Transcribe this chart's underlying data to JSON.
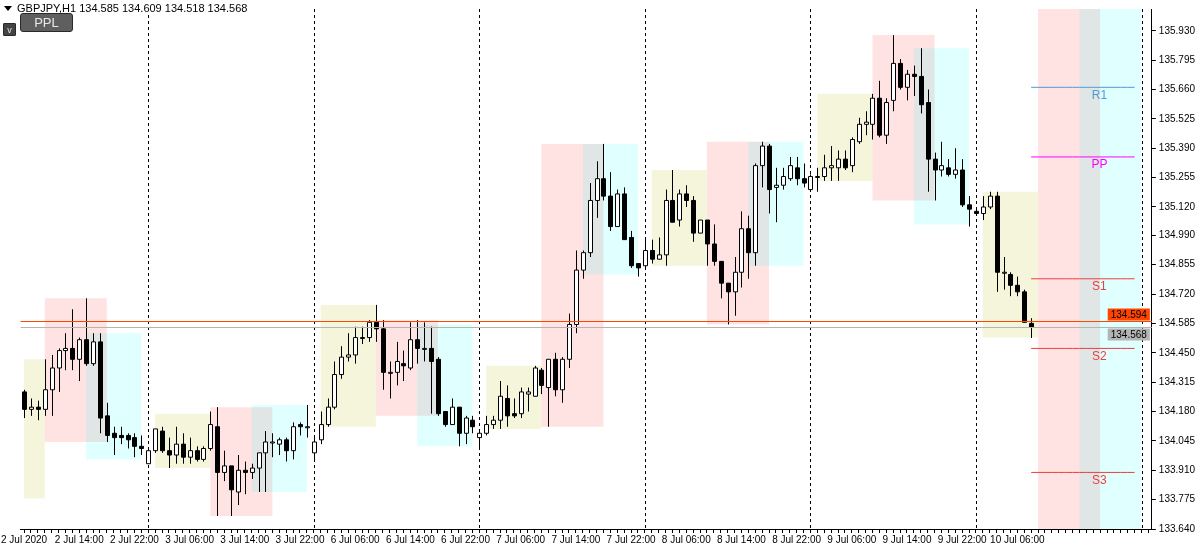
{
  "chart_data": {
    "type": "candlestick",
    "title": "GBPJPY,H1  134.585 134.609 134.518 134.568",
    "annotations": [
      "PPL",
      "v"
    ],
    "categories": [
      "2 Jul 2020",
      null,
      null,
      null,
      null,
      null,
      null,
      null,
      "2 Jul 14:00",
      null,
      null,
      null,
      null,
      null,
      null,
      null,
      "2 Jul 22:00",
      null,
      null,
      null,
      null,
      null,
      null,
      null,
      "3 Jul 06:00",
      null,
      null,
      null,
      null,
      null,
      null,
      null,
      "3 Jul 14:00",
      null,
      null,
      null,
      null,
      null,
      null,
      null,
      "3 Jul 22:00",
      null,
      null,
      null,
      null,
      null,
      null,
      null,
      "6 Jul 06:00",
      null,
      null,
      null,
      null,
      null,
      null,
      null,
      "6 Jul 14:00",
      null,
      null,
      null,
      null,
      null,
      null,
      null,
      "6 Jul 22:00",
      null,
      null,
      null,
      null,
      null,
      null,
      null,
      "7 Jul 06:00",
      null,
      null,
      null,
      null,
      null,
      null,
      null,
      "7 Jul 14:00",
      null,
      null,
      null,
      null,
      null,
      null,
      null,
      "7 Jul 22:00",
      null,
      null,
      null,
      null,
      null,
      null,
      null,
      "8 Jul 06:00",
      null,
      null,
      null,
      null,
      null,
      null,
      null,
      "8 Jul 14:00",
      null,
      null,
      null,
      null,
      null,
      null,
      null,
      "8 Jul 22:00",
      null,
      null,
      null,
      null,
      null,
      null,
      null,
      "9 Jul 06:00",
      null,
      null,
      null,
      null,
      null,
      null,
      null,
      "9 Jul 14:00",
      null,
      null,
      null,
      null,
      null,
      null,
      null,
      "9 Jul 22:00",
      null,
      null,
      null,
      null,
      null,
      null,
      null,
      "10 Jul 06:00",
      null,
      null,
      null,
      null,
      null,
      null,
      null,
      null,
      null,
      null,
      null,
      null,
      null,
      null,
      null,
      null,
      null,
      null,
      null
    ],
    "ohlc": [
      [
        134.27,
        134.28,
        134.15,
        134.19
      ],
      [
        134.19,
        134.24,
        134.16,
        134.2
      ],
      [
        134.2,
        134.23,
        134.14,
        134.19
      ],
      [
        134.19,
        134.42,
        134.16,
        134.28
      ],
      [
        134.28,
        134.44,
        134.16,
        134.38
      ],
      [
        134.38,
        134.47,
        134.27,
        134.46
      ],
      [
        134.46,
        134.54,
        134.37,
        134.47
      ],
      [
        134.47,
        134.65,
        134.37,
        134.42
      ],
      [
        134.42,
        134.52,
        134.32,
        134.51
      ],
      [
        134.51,
        134.7,
        134.39,
        134.4
      ],
      [
        134.4,
        134.54,
        134.39,
        134.5
      ],
      [
        134.5,
        134.54,
        134.08,
        134.15
      ],
      [
        134.16,
        134.22,
        134.04,
        134.07
      ],
      [
        134.08,
        134.11,
        133.98,
        134.06
      ],
      [
        134.07,
        134.11,
        134.03,
        134.06
      ],
      [
        134.07,
        134.08,
        134.01,
        134.05
      ],
      [
        134.06,
        134.08,
        133.97,
        134.02
      ],
      [
        134.02,
        134.07,
        133.98,
        134.01
      ],
      [
        133.94,
        134.0,
        133.94,
        134.0
      ],
      [
        134.0,
        134.1,
        133.99,
        134.1
      ],
      [
        134.09,
        134.11,
        133.99,
        134.0
      ],
      [
        134.0,
        134.06,
        133.92,
        133.98
      ],
      [
        133.98,
        134.11,
        133.94,
        134.03
      ],
      [
        134.03,
        134.08,
        133.94,
        133.97
      ],
      [
        133.97,
        134.06,
        133.94,
        134.0
      ],
      [
        134.0,
        134.02,
        133.95,
        133.96
      ],
      [
        133.96,
        134.02,
        133.95,
        134.01
      ],
      [
        134.01,
        134.18,
        134.0,
        134.12
      ],
      [
        134.11,
        134.2,
        133.7,
        133.9
      ],
      [
        133.9,
        134.0,
        133.86,
        133.93
      ],
      [
        133.93,
        133.93,
        133.7,
        133.82
      ],
      [
        133.81,
        133.98,
        133.75,
        133.91
      ],
      [
        133.91,
        133.95,
        133.8,
        133.9
      ],
      [
        133.9,
        133.94,
        133.87,
        133.92
      ],
      [
        133.92,
        133.99,
        133.81,
        133.99
      ],
      [
        133.99,
        134.09,
        133.81,
        134.04
      ],
      [
        134.04,
        134.08,
        133.97,
        134.04
      ],
      [
        134.03,
        134.06,
        133.98,
        134.05
      ],
      [
        134.05,
        134.06,
        133.95,
        134.0
      ],
      [
        134.0,
        134.13,
        133.96,
        134.11
      ],
      [
        134.12,
        134.13,
        134.07,
        134.11
      ],
      [
        134.11,
        134.21,
        134.06,
        134.11
      ],
      [
        133.99,
        134.06,
        133.95,
        134.04
      ],
      [
        134.05,
        134.18,
        134.03,
        134.12
      ],
      [
        134.12,
        134.24,
        134.11,
        134.2
      ],
      [
        134.2,
        134.41,
        134.19,
        134.35
      ],
      [
        134.35,
        134.48,
        134.33,
        134.43
      ],
      [
        134.43,
        134.54,
        134.41,
        134.44
      ],
      [
        134.44,
        134.57,
        134.4,
        134.52
      ],
      [
        134.52,
        134.57,
        134.49,
        134.52
      ],
      [
        134.52,
        134.6,
        134.5,
        134.59
      ],
      [
        134.59,
        134.67,
        134.5,
        134.56
      ],
      [
        134.56,
        134.6,
        134.28,
        134.36
      ],
      [
        134.36,
        134.41,
        134.24,
        134.36
      ],
      [
        134.36,
        134.5,
        134.3,
        134.41
      ],
      [
        134.4,
        134.46,
        134.32,
        134.39
      ],
      [
        134.38,
        134.59,
        134.37,
        134.51
      ],
      [
        134.51,
        134.6,
        134.4,
        134.47
      ],
      [
        134.47,
        134.59,
        134.41,
        134.47
      ],
      [
        134.47,
        134.57,
        134.17,
        134.41
      ],
      [
        134.42,
        134.43,
        134.16,
        134.17
      ],
      [
        134.18,
        134.18,
        134.11,
        134.12
      ],
      [
        134.12,
        134.24,
        134.12,
        134.2
      ],
      [
        134.2,
        134.2,
        134.02,
        134.08
      ],
      [
        134.08,
        134.16,
        134.03,
        134.15
      ],
      [
        134.14,
        134.16,
        134.08,
        134.11
      ],
      [
        134.06,
        134.09,
        134.01,
        134.08
      ],
      [
        134.08,
        134.16,
        134.07,
        134.12
      ],
      [
        134.12,
        134.16,
        134.1,
        134.14
      ],
      [
        134.14,
        134.32,
        134.1,
        134.25
      ],
      [
        134.24,
        134.3,
        134.11,
        134.16
      ],
      [
        134.17,
        134.24,
        134.15,
        134.16
      ],
      [
        134.17,
        134.29,
        134.15,
        134.27
      ],
      [
        134.26,
        134.29,
        134.18,
        134.27
      ],
      [
        134.25,
        134.39,
        134.25,
        134.38
      ],
      [
        134.37,
        134.38,
        134.26,
        134.3
      ],
      [
        134.29,
        134.42,
        134.11,
        134.42
      ],
      [
        134.42,
        134.45,
        134.25,
        134.28
      ],
      [
        134.28,
        134.43,
        134.22,
        134.42
      ],
      [
        134.42,
        134.63,
        134.38,
        134.58
      ],
      [
        134.58,
        134.92,
        134.54,
        134.83
      ],
      [
        134.83,
        134.92,
        134.79,
        134.91
      ],
      [
        134.91,
        135.23,
        134.89,
        135.15
      ],
      [
        135.15,
        135.33,
        135.07,
        135.25
      ],
      [
        135.25,
        135.41,
        135.15,
        135.17
      ],
      [
        135.17,
        135.28,
        135.01,
        135.03
      ],
      [
        135.03,
        135.2,
        135.03,
        135.18
      ],
      [
        135.18,
        135.21,
        134.97,
        134.97
      ],
      [
        134.98,
        135.01,
        134.84,
        134.85
      ],
      [
        134.86,
        134.86,
        134.8,
        134.84
      ],
      [
        134.85,
        134.98,
        134.84,
        134.92
      ],
      [
        134.92,
        134.97,
        134.86,
        134.88
      ],
      [
        134.88,
        134.98,
        134.88,
        134.9
      ],
      [
        134.9,
        135.2,
        134.85,
        135.15
      ],
      [
        135.15,
        135.29,
        135.05,
        135.05
      ],
      [
        135.06,
        135.2,
        135.03,
        135.18
      ],
      [
        135.18,
        135.22,
        135.12,
        135.15
      ],
      [
        135.15,
        135.17,
        134.96,
        135.0
      ],
      [
        135.0,
        135.06,
        135.0,
        135.06
      ],
      [
        135.06,
        135.06,
        134.85,
        134.95
      ],
      [
        134.95,
        135.04,
        134.85,
        134.87
      ],
      [
        134.87,
        134.87,
        134.7,
        134.77
      ],
      [
        134.77,
        134.77,
        134.58,
        134.73
      ],
      [
        134.73,
        134.89,
        134.62,
        134.82
      ],
      [
        134.82,
        135.1,
        134.75,
        135.02
      ],
      [
        135.02,
        135.08,
        134.79,
        134.91
      ],
      [
        134.91,
        135.32,
        134.85,
        135.31
      ],
      [
        135.31,
        135.42,
        135.21,
        135.4
      ],
      [
        135.4,
        135.41,
        135.09,
        135.2
      ],
      [
        135.21,
        135.3,
        135.05,
        135.22
      ],
      [
        135.22,
        135.3,
        135.2,
        135.26
      ],
      [
        135.25,
        135.35,
        135.24,
        135.31
      ],
      [
        135.3,
        135.35,
        135.22,
        135.25
      ],
      [
        135.25,
        135.32,
        135.21,
        135.23
      ],
      [
        135.2,
        135.27,
        135.2,
        135.26
      ],
      [
        135.26,
        135.3,
        135.19,
        135.26
      ],
      [
        135.26,
        135.36,
        135.24,
        135.3
      ],
      [
        135.3,
        135.4,
        135.24,
        135.31
      ],
      [
        135.3,
        135.38,
        135.24,
        135.34
      ],
      [
        135.34,
        135.38,
        135.29,
        135.3
      ],
      [
        135.31,
        135.44,
        135.28,
        135.43
      ],
      [
        135.42,
        135.53,
        135.41,
        135.5
      ],
      [
        135.5,
        135.56,
        135.45,
        135.51
      ],
      [
        135.5,
        135.64,
        135.43,
        135.62
      ],
      [
        135.62,
        135.7,
        135.44,
        135.45
      ],
      [
        135.45,
        135.62,
        135.41,
        135.6
      ],
      [
        135.61,
        135.91,
        135.56,
        135.78
      ],
      [
        135.78,
        135.8,
        135.66,
        135.67
      ],
      [
        135.67,
        135.75,
        135.61,
        135.73
      ],
      [
        135.73,
        135.77,
        135.63,
        135.72
      ],
      [
        135.72,
        135.85,
        135.55,
        135.59
      ],
      [
        135.6,
        135.66,
        135.19,
        135.34
      ],
      [
        135.34,
        135.37,
        135.15,
        135.29
      ],
      [
        135.29,
        135.42,
        135.26,
        135.31
      ],
      [
        135.3,
        135.34,
        135.26,
        135.27
      ],
      [
        135.27,
        135.39,
        135.25,
        135.29
      ],
      [
        135.29,
        135.34,
        135.12,
        135.13
      ],
      [
        135.13,
        135.17,
        135.03,
        135.11
      ],
      [
        135.1,
        135.11,
        135.09,
        135.09
      ],
      [
        135.09,
        135.17,
        135.06,
        135.12
      ],
      [
        135.12,
        135.19,
        135.11,
        135.17
      ],
      [
        135.17,
        135.19,
        134.73,
        134.82
      ],
      [
        134.82,
        134.89,
        134.74,
        134.82
      ],
      [
        134.81,
        134.82,
        134.71,
        134.76
      ],
      [
        134.76,
        134.8,
        134.71,
        134.73
      ],
      [
        134.73,
        134.74,
        134.59,
        134.59
      ],
      [
        134.585,
        134.609,
        134.518,
        134.568
      ],
      null,
      null,
      null,
      null,
      null,
      null,
      null,
      null,
      null,
      null,
      null,
      null,
      null,
      null,
      null,
      null,
      null
    ],
    "bands": [
      {
        "axis": "y",
        "from": 133.92,
        "to": 134.17,
        "color": "#f5f5dc"
      },
      {
        "axis": "y",
        "from": 134.11,
        "to": 134.67,
        "color": "#f5f5dc"
      },
      {
        "axis": "y",
        "from": 134.1,
        "to": 134.39,
        "color": "#f5f5dc"
      },
      {
        "axis": "y",
        "from": 134.85,
        "to": 135.29,
        "color": "#f5f5dc"
      },
      {
        "axis": "y",
        "from": 135.24,
        "to": 135.64,
        "color": "#f5f5dc"
      },
      {
        "axis": "y",
        "from": 134.52,
        "to": 135.19,
        "color": "#f5f5dc"
      },
      {
        "axis": "y",
        "from": 134.04,
        "to": 134.7,
        "color": "#ffe3e3"
      },
      {
        "axis": "y",
        "from": 133.7,
        "to": 134.2,
        "color": "#ffe3e3"
      },
      {
        "axis": "y",
        "from": 134.16,
        "to": 134.6,
        "color": "#ffe3e3"
      },
      {
        "axis": "y",
        "from": 134.11,
        "to": 135.41,
        "color": "#ffe3e3"
      },
      {
        "axis": "y",
        "from": 134.58,
        "to": 135.42,
        "color": "#ffe3e3"
      },
      {
        "axis": "y",
        "from": 135.15,
        "to": 135.91,
        "color": "#ffe3e3"
      },
      {
        "axis": "y",
        "from": 133.96,
        "to": 134.54,
        "color": "#e0ffff"
      },
      {
        "axis": "y",
        "from": 133.81,
        "to": 134.21,
        "color": "#e0ffff"
      },
      {
        "axis": "y",
        "from": 134.02,
        "to": 134.58,
        "color": "#e0ffff"
      },
      {
        "axis": "y",
        "from": 134.81,
        "to": 135.41,
        "color": "#e0ffff"
      },
      {
        "axis": "y",
        "from": 134.85,
        "to": 135.42,
        "color": "#e0ffff"
      },
      {
        "axis": "y",
        "from": 135.04,
        "to": 135.85,
        "color": "#e0ffff"
      }
    ],
    "series": [
      {
        "type": "line",
        "color": "#f5f5dc",
        "values": [
          null,
          null,
          null,
          null,
          null,
          null,
          null,
          null,
          null,
          null,
          null,
          null,
          null,
          null,
          null,
          null,
          null,
          null,
          null,
          null,
          null,
          null,
          null,
          null,
          null,
          null,
          null,
          null,
          null,
          null,
          null,
          null,
          null,
          null,
          null,
          null,
          null,
          null,
          null,
          null,
          null,
          null,
          null,
          null,
          null,
          null,
          null,
          null,
          null,
          null,
          null,
          null,
          null,
          null,
          null,
          null,
          null,
          null,
          null,
          null,
          null,
          null,
          null,
          null,
          null,
          null,
          null,
          null,
          null,
          null,
          null,
          null,
          null,
          null,
          null,
          null,
          null,
          null,
          null,
          null,
          null,
          null,
          null,
          null,
          null,
          null,
          null,
          null,
          null,
          null,
          null,
          null,
          null,
          null,
          null,
          null,
          null,
          null,
          null,
          null,
          null,
          null,
          null,
          null,
          null,
          null,
          null,
          null,
          null,
          null,
          null,
          null,
          null,
          null,
          null,
          null,
          null,
          null,
          null,
          null,
          null,
          null,
          null,
          null,
          null,
          null,
          null,
          null,
          null,
          null,
          null,
          null,
          null,
          null,
          null,
          null,
          null,
          null,
          null,
          null,
          null,
          null,
          null,
          null,
          null,
          null,
          null,
          null,
          null,
          null,
          null,
          null,
          null,
          null,
          null,
          null,
          null,
          null,
          null,
          null,
          null,
          null,
          null,
          null
        ],
        "lower": [
          133.78,
          133.78,
          133.78,
          133.78,
          null,
          null,
          null,
          null,
          null,
          null,
          null,
          null,
          null,
          null,
          null,
          null,
          null,
          null,
          null,
          null,
          null,
          null,
          null,
          null,
          null,
          null,
          null,
          null,
          null,
          null,
          null,
          null,
          null,
          null,
          null,
          null,
          null,
          null,
          null,
          null,
          null,
          null,
          null,
          null,
          null,
          null,
          null,
          null,
          null,
          null,
          null,
          null,
          null,
          null,
          null,
          null,
          null,
          null,
          null,
          null,
          null,
          null,
          null,
          null,
          null,
          null,
          null,
          null,
          null,
          null,
          null,
          null,
          null,
          null,
          null,
          null,
          null,
          null,
          null,
          null,
          null,
          null,
          null,
          null,
          null,
          null,
          null,
          null,
          null,
          null,
          null,
          null,
          null,
          null,
          null,
          null,
          null,
          null,
          null,
          null,
          null,
          null,
          null,
          null,
          null,
          null,
          null,
          null,
          null,
          null,
          null,
          null,
          null,
          null,
          null,
          null,
          null,
          null,
          null,
          null,
          null,
          null,
          null,
          null,
          null,
          null,
          null,
          null,
          null,
          null,
          null,
          null,
          null,
          null,
          null,
          null,
          null,
          null,
          null,
          null,
          null,
          null,
          null,
          null,
          null,
          null,
          null,
          null,
          null,
          null,
          null,
          null,
          null,
          null,
          null,
          null,
          null,
          null,
          null,
          null,
          null,
          null,
          null,
          null
        ],
        "upper": [
          134.42,
          134.42,
          134.42,
          134.42,
          null,
          null,
          null,
          null,
          null,
          null,
          null,
          null,
          null,
          null,
          null,
          null,
          null,
          null,
          null,
          null,
          null,
          null,
          null,
          null,
          null,
          null,
          null,
          null,
          null,
          null,
          null,
          null,
          null,
          null,
          null,
          null,
          null,
          null,
          null,
          null,
          null,
          null,
          null,
          null,
          null,
          null,
          null,
          null,
          null,
          null,
          null,
          null,
          null,
          null,
          null,
          null,
          null,
          null,
          null,
          null,
          null,
          null,
          null,
          null,
          null,
          null,
          null,
          null,
          null,
          null,
          null,
          null,
          null,
          null,
          null,
          null,
          null,
          null,
          null,
          null,
          null,
          null,
          null,
          null,
          null,
          null,
          null,
          null,
          null,
          null,
          null,
          null,
          null,
          null,
          null,
          null,
          null,
          null,
          null,
          null,
          null,
          null,
          null,
          null,
          null,
          null,
          null,
          null,
          null,
          null,
          null,
          null,
          null,
          null,
          null,
          null,
          null,
          null,
          null,
          null,
          null,
          null,
          null,
          null,
          null,
          null,
          null,
          null,
          null,
          null,
          null,
          null,
          null,
          null,
          null,
          null,
          null,
          null,
          null,
          null,
          null,
          null,
          null,
          null,
          null,
          null,
          null,
          null,
          null,
          null,
          null,
          null,
          null,
          null,
          null,
          null,
          null,
          null,
          null,
          null,
          null,
          null,
          null,
          null
        ]
      },
      {
        "type": "line",
        "name": "R1",
        "color": "#4f9ad8",
        "values": [
          null,
          null,
          null,
          null,
          null,
          null,
          null,
          null,
          null,
          null,
          null,
          null,
          null,
          null,
          null,
          null,
          null,
          null,
          null,
          null,
          null,
          null,
          null,
          null,
          null,
          null,
          null,
          null,
          null,
          null,
          null,
          null,
          null,
          null,
          null,
          null,
          null,
          null,
          null,
          null,
          null,
          null,
          null,
          null,
          null,
          null,
          null,
          null,
          null,
          null,
          null,
          null,
          null,
          null,
          null,
          null,
          null,
          null,
          null,
          null,
          null,
          null,
          null,
          null,
          null,
          null,
          null,
          null,
          null,
          null,
          null,
          null,
          null,
          null,
          null,
          null,
          null,
          null,
          null,
          null,
          null,
          null,
          null,
          null,
          null,
          null,
          null,
          null,
          null,
          null,
          null,
          null,
          null,
          null,
          null,
          null,
          null,
          null,
          null,
          null,
          null,
          null,
          null,
          null,
          null,
          null,
          null,
          null,
          null,
          null,
          null,
          null,
          null,
          null,
          null,
          null,
          null,
          null,
          null,
          null,
          null,
          null,
          null,
          null,
          null,
          null,
          null,
          null,
          null,
          null,
          null,
          null,
          null,
          null,
          null,
          null,
          null,
          null,
          null,
          null,
          null,
          null,
          null,
          null,
          null,
          null,
          135.67,
          135.67,
          135.67,
          135.67,
          135.67,
          135.67,
          135.67,
          135.67,
          135.67,
          135.67,
          135.67,
          135.67,
          135.67,
          135.67,
          135.67,
          135.67,
          null,
          null
        ]
      },
      {
        "type": "line",
        "name": "PP",
        "color": "#ff00ff",
        "values": [
          null,
          null,
          null,
          null,
          null,
          null,
          null,
          null,
          null,
          null,
          null,
          null,
          null,
          null,
          null,
          null,
          null,
          null,
          null,
          null,
          null,
          null,
          null,
          null,
          null,
          null,
          null,
          null,
          null,
          null,
          null,
          null,
          null,
          null,
          null,
          null,
          null,
          null,
          null,
          null,
          null,
          null,
          null,
          null,
          null,
          null,
          null,
          null,
          null,
          null,
          null,
          null,
          null,
          null,
          null,
          null,
          null,
          null,
          null,
          null,
          null,
          null,
          null,
          null,
          null,
          null,
          null,
          null,
          null,
          null,
          null,
          null,
          null,
          null,
          null,
          null,
          null,
          null,
          null,
          null,
          null,
          null,
          null,
          null,
          null,
          null,
          null,
          null,
          null,
          null,
          null,
          null,
          null,
          null,
          null,
          null,
          null,
          null,
          null,
          null,
          null,
          null,
          null,
          null,
          null,
          null,
          null,
          null,
          null,
          null,
          null,
          null,
          null,
          null,
          null,
          null,
          null,
          null,
          null,
          null,
          null,
          null,
          null,
          null,
          null,
          null,
          null,
          null,
          null,
          null,
          null,
          null,
          null,
          null,
          null,
          null,
          null,
          null,
          null,
          null,
          null,
          null,
          null,
          null,
          null,
          null,
          135.35,
          135.35,
          135.35,
          135.35,
          135.35,
          135.35,
          135.35,
          135.35,
          135.35,
          135.35,
          135.35,
          135.35,
          135.35,
          135.35,
          135.35,
          135.35,
          null,
          null
        ]
      },
      {
        "type": "line",
        "name": "S1",
        "color": "#f03c3c",
        "values": [
          null,
          null,
          null,
          null,
          null,
          null,
          null,
          null,
          null,
          null,
          null,
          null,
          null,
          null,
          null,
          null,
          null,
          null,
          null,
          null,
          null,
          null,
          null,
          null,
          null,
          null,
          null,
          null,
          null,
          null,
          null,
          null,
          null,
          null,
          null,
          null,
          null,
          null,
          null,
          null,
          null,
          null,
          null,
          null,
          null,
          null,
          null,
          null,
          null,
          null,
          null,
          null,
          null,
          null,
          null,
          null,
          null,
          null,
          null,
          null,
          null,
          null,
          null,
          null,
          null,
          null,
          null,
          null,
          null,
          null,
          null,
          null,
          null,
          null,
          null,
          null,
          null,
          null,
          null,
          null,
          null,
          null,
          null,
          null,
          null,
          null,
          null,
          null,
          null,
          null,
          null,
          null,
          null,
          null,
          null,
          null,
          null,
          null,
          null,
          null,
          null,
          null,
          null,
          null,
          null,
          null,
          null,
          null,
          null,
          null,
          null,
          null,
          null,
          null,
          null,
          null,
          null,
          null,
          null,
          null,
          null,
          null,
          null,
          null,
          null,
          null,
          null,
          null,
          null,
          null,
          null,
          null,
          null,
          null,
          null,
          null,
          null,
          null,
          null,
          null,
          null,
          null,
          null,
          null,
          null,
          null,
          134.79,
          134.79,
          134.79,
          134.79,
          134.79,
          134.79,
          134.79,
          134.79,
          134.79,
          134.79,
          134.79,
          134.79,
          134.79,
          134.79,
          134.79,
          134.79,
          null,
          null
        ]
      },
      {
        "type": "line",
        "name": "S2",
        "color": "#f03c3c",
        "values": [
          null,
          null,
          null,
          null,
          null,
          null,
          null,
          null,
          null,
          null,
          null,
          null,
          null,
          null,
          null,
          null,
          null,
          null,
          null,
          null,
          null,
          null,
          null,
          null,
          null,
          null,
          null,
          null,
          null,
          null,
          null,
          null,
          null,
          null,
          null,
          null,
          null,
          null,
          null,
          null,
          null,
          null,
          null,
          null,
          null,
          null,
          null,
          null,
          null,
          null,
          null,
          null,
          null,
          null,
          null,
          null,
          null,
          null,
          null,
          null,
          null,
          null,
          null,
          null,
          null,
          null,
          null,
          null,
          null,
          null,
          null,
          null,
          null,
          null,
          null,
          null,
          null,
          null,
          null,
          null,
          null,
          null,
          null,
          null,
          null,
          null,
          null,
          null,
          null,
          null,
          null,
          null,
          null,
          null,
          null,
          null,
          null,
          null,
          null,
          null,
          null,
          null,
          null,
          null,
          null,
          null,
          null,
          null,
          null,
          null,
          null,
          null,
          null,
          null,
          null,
          null,
          null,
          null,
          null,
          null,
          null,
          null,
          null,
          null,
          null,
          null,
          null,
          null,
          null,
          null,
          null,
          null,
          null,
          null,
          null,
          null,
          null,
          null,
          null,
          null,
          null,
          null,
          null,
          null,
          null,
          null,
          134.47,
          134.47,
          134.47,
          134.47,
          134.47,
          134.47,
          134.47,
          134.47,
          134.47,
          134.47,
          134.47,
          134.47,
          134.47,
          134.47,
          134.47,
          134.47,
          null,
          null
        ]
      },
      {
        "type": "line",
        "name": "S3",
        "color": "#f03c3c",
        "values": [
          null,
          null,
          null,
          null,
          null,
          null,
          null,
          null,
          null,
          null,
          null,
          null,
          null,
          null,
          null,
          null,
          null,
          null,
          null,
          null,
          null,
          null,
          null,
          null,
          null,
          null,
          null,
          null,
          null,
          null,
          null,
          null,
          null,
          null,
          null,
          null,
          null,
          null,
          null,
          null,
          null,
          null,
          null,
          null,
          null,
          null,
          null,
          null,
          null,
          null,
          null,
          null,
          null,
          null,
          null,
          null,
          null,
          null,
          null,
          null,
          null,
          null,
          null,
          null,
          null,
          null,
          null,
          null,
          null,
          null,
          null,
          null,
          null,
          null,
          null,
          null,
          null,
          null,
          null,
          null,
          null,
          null,
          null,
          null,
          null,
          null,
          null,
          null,
          null,
          null,
          null,
          null,
          null,
          null,
          null,
          null,
          null,
          null,
          null,
          null,
          null,
          null,
          null,
          null,
          null,
          null,
          null,
          null,
          null,
          null,
          null,
          null,
          null,
          null,
          null,
          null,
          null,
          null,
          null,
          null,
          null,
          null,
          null,
          null,
          null,
          null,
          null,
          null,
          null,
          null,
          null,
          null,
          null,
          null,
          null,
          null,
          null,
          null,
          null,
          null,
          null,
          null,
          null,
          null,
          null,
          null,
          133.9,
          133.9,
          133.9,
          133.9,
          133.9,
          133.9,
          133.9,
          133.9,
          133.9,
          133.9,
          133.9,
          133.9,
          133.9,
          133.9,
          133.9,
          133.9,
          null,
          null
        ]
      }
    ],
    "ylim": [
      133.64,
      136.03
    ],
    "yticks": [
      {
        "value": 133.64,
        "label": "133.640"
      },
      133.775,
      {
        "value": 133.91,
        "label": "133.910"
      },
      134.045,
      {
        "value": 134.18,
        "label": "134.180"
      },
      134.315,
      {
        "value": 134.45,
        "label": "134.450"
      },
      134.585,
      {
        "value": 134.72,
        "label": "134.720"
      },
      134.855,
      {
        "value": 134.99,
        "label": "134.990"
      },
      {
        "value": 135.12,
        "label": "135.120"
      },
      135.255,
      {
        "value": 135.39,
        "label": "135.390"
      },
      135.525,
      {
        "value": 135.66,
        "label": "135.660"
      },
      135.795,
      {
        "value": 135.93,
        "label": "135.930"
      }
    ],
    "ref_lines": [
      {
        "axis": "y",
        "value": 134.594,
        "label": "134.594",
        "color": "#ff4500"
      },
      {
        "axis": "y",
        "value": 134.568,
        "label": "134.568",
        "color": "#b4b4b4"
      }
    ],
    "marker": "none",
    "grid": false,
    "legend": false
  }
}
